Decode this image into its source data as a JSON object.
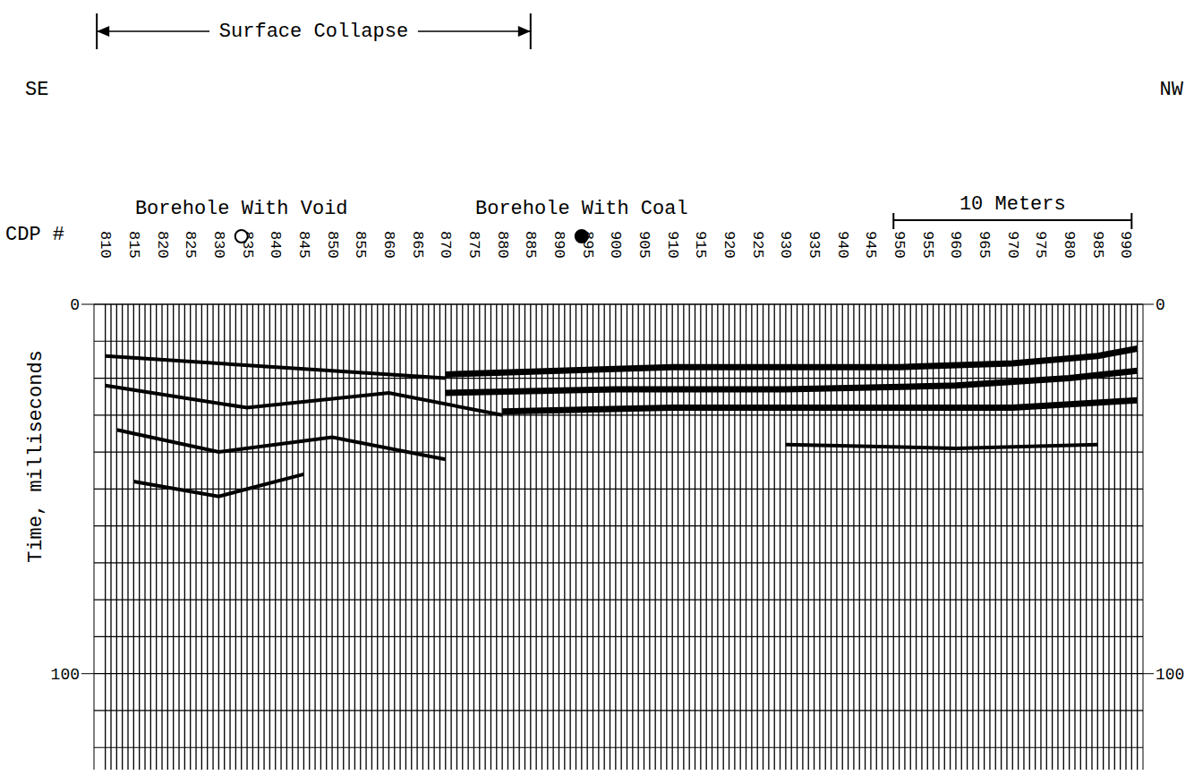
{
  "chart_data": {
    "type": "line",
    "x_label": "CDP #",
    "y_label": "Time, milliseconds",
    "xlim": [
      808,
      993
    ],
    "xticks": [
      810,
      815,
      820,
      825,
      830,
      835,
      840,
      845,
      850,
      855,
      860,
      865,
      870,
      875,
      880,
      885,
      890,
      895,
      900,
      905,
      910,
      915,
      920,
      925,
      930,
      935,
      940,
      945,
      950,
      955,
      960,
      965,
      970,
      975,
      980,
      985,
      990
    ],
    "ylim": [
      0,
      126
    ],
    "yticks": [
      0,
      100
    ],
    "timing_lines": [
      0,
      10,
      20,
      30,
      40,
      50,
      60,
      70,
      80,
      90,
      100,
      110,
      120
    ],
    "trace_cdp_range": [
      810,
      992
    ],
    "series": [
      {
        "color": "#000000",
        "line_style": "heavy",
        "x": [
          870,
          890,
          910,
          930,
          950,
          970,
          985,
          992
        ],
        "values": [
          19,
          18,
          17,
          17,
          17,
          16,
          14,
          12
        ]
      },
      {
        "color": "#000000",
        "line_style": "heavy",
        "x": [
          870,
          900,
          930,
          960,
          980,
          992
        ],
        "values": [
          24,
          23,
          23,
          22,
          20,
          18
        ]
      },
      {
        "color": "#000000",
        "line_style": "heavy",
        "x": [
          880,
          910,
          940,
          970,
          992
        ],
        "values": [
          29,
          28,
          28,
          28,
          26
        ]
      },
      {
        "color": "#000000",
        "line_style": "medium",
        "x": [
          930,
          960,
          985
        ],
        "values": [
          38,
          39,
          38
        ]
      },
      {
        "color": "#000000",
        "line_style": "medium",
        "x": [
          810,
          830,
          850,
          870
        ],
        "values": [
          14,
          16,
          18,
          20
        ]
      },
      {
        "color": "#000000",
        "line_style": "medium",
        "x": [
          810,
          835,
          860,
          880
        ],
        "values": [
          22,
          28,
          24,
          30
        ]
      },
      {
        "color": "#000000",
        "line_style": "medium",
        "x": [
          812,
          830,
          850,
          870
        ],
        "values": [
          34,
          40,
          36,
          42
        ]
      },
      {
        "color": "#000000",
        "line_style": "medium",
        "x": [
          815,
          830,
          845
        ],
        "values": [
          48,
          52,
          46
        ]
      }
    ],
    "annotations": {
      "left": "SE",
      "right": "NW",
      "surface_collapse": {
        "text": "Surface Collapse",
        "from": 808.5,
        "to": 885
      },
      "boreholes": [
        {
          "text": "Borehole With Void",
          "cdp": 834,
          "marker": "open"
        },
        {
          "text": "Borehole With Coal",
          "cdp": 894,
          "marker": "filled"
        }
      ],
      "scale_bar": {
        "text": "10 Meters",
        "from": 949,
        "to": 991
      }
    }
  }
}
